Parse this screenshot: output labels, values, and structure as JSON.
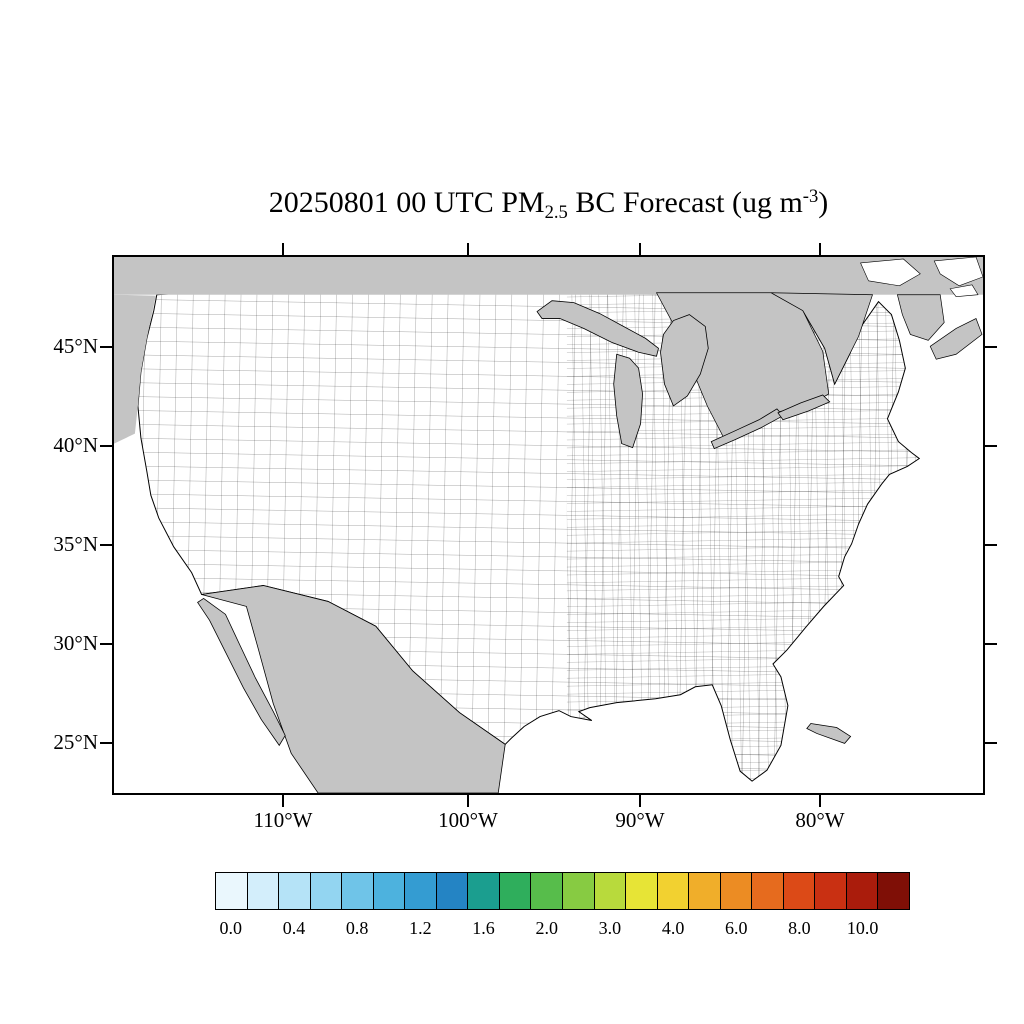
{
  "title": {
    "text_before_sub": "20250801 00 UTC PM",
    "subscript": "2.5",
    "text_middle": " BC Forecast (ug m",
    "superscript": "-3",
    "text_after": ")"
  },
  "map": {
    "y_axis_labels": [
      "45°N",
      "40°N",
      "35°N",
      "30°N",
      "25°N"
    ],
    "x_axis_labels": [
      "110°W",
      "100°W",
      "90°W",
      "80°W"
    ],
    "outside_fill_color": "#c4c4c4",
    "us_fill_color": "#ffffff",
    "boundary_color": "#000000"
  },
  "colorbar": {
    "labels": [
      "0.0",
      "0.4",
      "0.8",
      "1.2",
      "1.6",
      "2.0",
      "3.0",
      "4.0",
      "6.0",
      "8.0",
      "10.0"
    ],
    "colors": [
      "#eaf7fd",
      "#d3eefb",
      "#b5e3f7",
      "#93d5f1",
      "#6fc4e8",
      "#4db2de",
      "#349cd2",
      "#2484c4",
      "#1b9e8f",
      "#2fae5c",
      "#57bd4b",
      "#87cb42",
      "#b8da3c",
      "#e7e436",
      "#f2d130",
      "#f0ae2a",
      "#ec8c23",
      "#e66b1e",
      "#dc4a17",
      "#c93012",
      "#aa1c0c",
      "#7f0f06"
    ]
  }
}
